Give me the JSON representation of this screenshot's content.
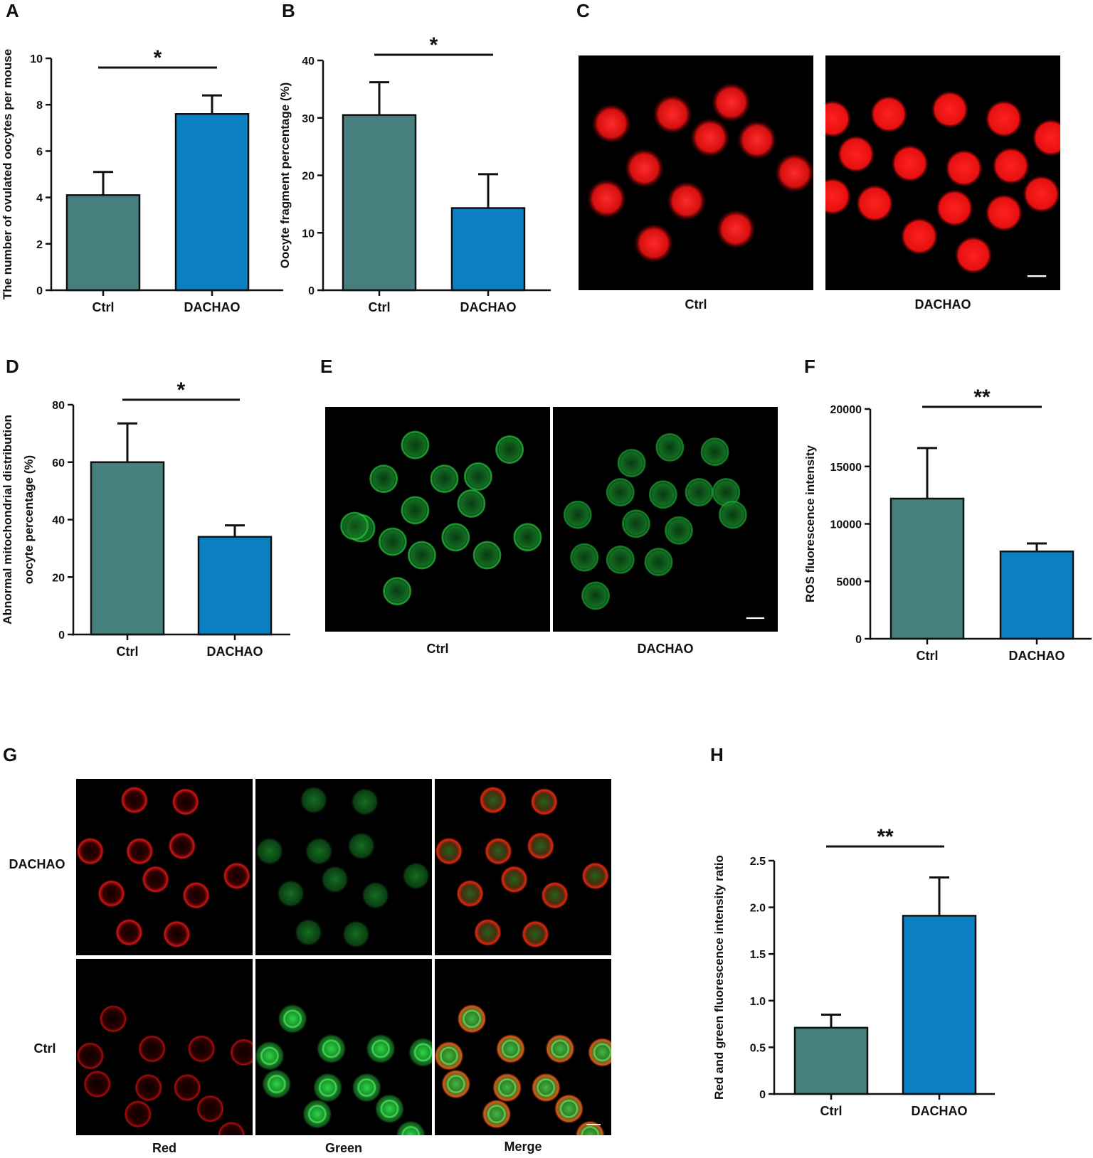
{
  "panels": {
    "A": {
      "letter": "A"
    },
    "B": {
      "letter": "B"
    },
    "C": {
      "letter": "C",
      "labels": [
        "Ctrl",
        "DACHAO"
      ]
    },
    "D": {
      "letter": "D"
    },
    "E": {
      "letter": "E",
      "labels": [
        "Ctrl",
        "DACHAO"
      ]
    },
    "F": {
      "letter": "F"
    },
    "G": {
      "letter": "G",
      "row_labels": [
        "DACHAO",
        "Ctrl"
      ],
      "col_labels": [
        "Red",
        "Green",
        "Merge"
      ]
    },
    "H": {
      "letter": "H"
    }
  },
  "colors": {
    "ctrl": "#45807e",
    "dachao": "#0a7fc1",
    "red_stain": "#ff1a1a",
    "green_stain": "#2fe04a"
  },
  "chart_data": [
    {
      "id": "A",
      "type": "bar",
      "categories": [
        "Ctrl",
        "DACHAO"
      ],
      "values": [
        4.1,
        7.6
      ],
      "errors": [
        1.0,
        0.8
      ],
      "ylabel": "The number of ovulated oocytes per mouse",
      "ylim": [
        0,
        10
      ],
      "yticks": [
        "0",
        "2",
        "4",
        "6",
        "8",
        "10"
      ],
      "significance": "*"
    },
    {
      "id": "B",
      "type": "bar",
      "categories": [
        "Ctrl",
        "DACHAO"
      ],
      "values": [
        30.5,
        14.3
      ],
      "errors": [
        5.7,
        5.9
      ],
      "ylabel": "Oocyte fragment percentage (%)",
      "ylim": [
        0,
        40
      ],
      "yticks": [
        "0",
        "10",
        "20",
        "30",
        "40"
      ],
      "significance": "*"
    },
    {
      "id": "D",
      "type": "bar",
      "categories": [
        "Ctrl",
        "DACHAO"
      ],
      "values": [
        60,
        34
      ],
      "errors": [
        13.5,
        4
      ],
      "ylabel": "Abnormal mitochondrial distribution oocyte percentage (%)",
      "ylabel_lines": [
        "Abnormal mitochondrial distribution",
        "oocyte percentage (%)"
      ],
      "ylim": [
        0,
        80
      ],
      "yticks": [
        "0",
        "20",
        "40",
        "60",
        "80"
      ],
      "significance": "*"
    },
    {
      "id": "F",
      "type": "bar",
      "categories": [
        "Ctrl",
        "DACHAO"
      ],
      "values": [
        12200,
        7600
      ],
      "errors": [
        4400,
        700
      ],
      "ylabel": "ROS fluorescence intensity",
      "ylim": [
        0,
        20000
      ],
      "yticks": [
        "0",
        "5000",
        "10000",
        "15000",
        "20000"
      ],
      "significance": "**"
    },
    {
      "id": "H",
      "type": "bar",
      "categories": [
        "Ctrl",
        "DACHAO"
      ],
      "values": [
        0.71,
        1.91
      ],
      "errors": [
        0.14,
        0.41
      ],
      "ylabel": "Red and green fluorescence intensity ratio",
      "ylim": [
        0,
        2.5
      ],
      "yticks": [
        "0",
        "0.5",
        "1.0",
        "1.5",
        "2.0",
        "2.5"
      ],
      "significance": "**"
    }
  ]
}
